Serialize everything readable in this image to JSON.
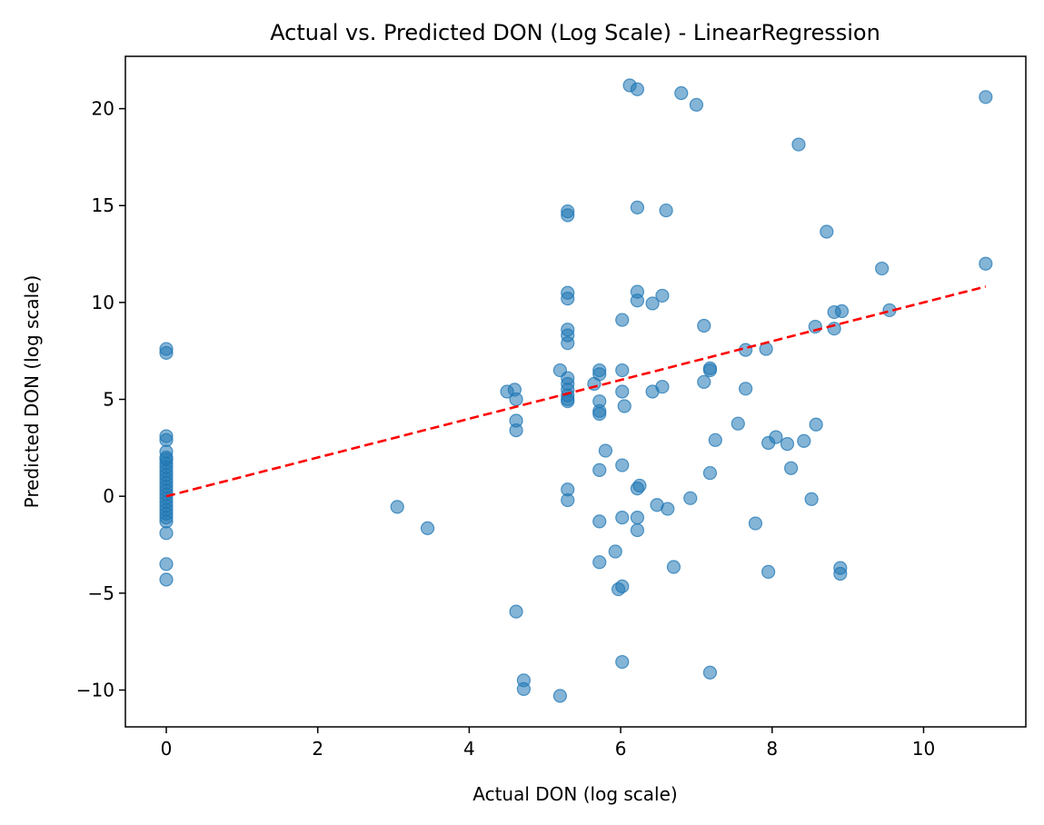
{
  "chart_data": {
    "type": "scatter",
    "title": "Actual vs. Predicted DON (Log Scale) - LinearRegression",
    "xlabel": "Actual DON (log scale)",
    "ylabel": "Predicted DON (log scale)",
    "xlim": [
      -0.54,
      11.35
    ],
    "ylim": [
      -11.9,
      22.7
    ],
    "xticks": [
      0,
      2,
      4,
      6,
      8,
      10
    ],
    "yticks": [
      -10,
      -5,
      0,
      5,
      10,
      15,
      20
    ],
    "xtick_labels": [
      "0",
      "2",
      "4",
      "6",
      "8",
      "10"
    ],
    "ytick_labels": [
      "−10",
      "−5",
      "0",
      "5",
      "10",
      "15",
      "20"
    ],
    "grid": false,
    "series": [
      {
        "type": "scatter",
        "color": "#1f77b4",
        "opacity": 0.55,
        "points": [
          [
            0,
            7.6
          ],
          [
            0,
            7.4
          ],
          [
            0,
            3.1
          ],
          [
            0,
            2.9
          ],
          [
            0,
            2.3
          ],
          [
            0,
            2.0
          ],
          [
            0,
            1.9
          ],
          [
            0,
            1.7
          ],
          [
            0,
            1.5
          ],
          [
            0,
            1.3
          ],
          [
            0,
            1.1
          ],
          [
            0,
            0.9
          ],
          [
            0,
            0.7
          ],
          [
            0,
            0.5
          ],
          [
            0,
            0.3
          ],
          [
            0,
            0.1
          ],
          [
            0,
            -0.1
          ],
          [
            0,
            -0.3
          ],
          [
            0,
            -0.5
          ],
          [
            0,
            -0.7
          ],
          [
            0,
            -0.9
          ],
          [
            0,
            -1.1
          ],
          [
            0,
            -1.3
          ],
          [
            0,
            -1.9
          ],
          [
            0,
            -3.5
          ],
          [
            0,
            -4.3
          ],
          [
            3.05,
            -0.55
          ],
          [
            3.45,
            -1.65
          ],
          [
            4.5,
            5.4
          ],
          [
            4.6,
            5.5
          ],
          [
            4.62,
            5.0
          ],
          [
            4.62,
            3.9
          ],
          [
            4.62,
            3.4
          ],
          [
            4.62,
            -5.95
          ],
          [
            4.72,
            -9.5
          ],
          [
            4.72,
            -9.95
          ],
          [
            5.2,
            -10.3
          ],
          [
            5.2,
            6.5
          ],
          [
            5.3,
            14.7
          ],
          [
            5.3,
            14.5
          ],
          [
            5.3,
            10.5
          ],
          [
            5.3,
            10.2
          ],
          [
            5.3,
            8.6
          ],
          [
            5.3,
            8.3
          ],
          [
            5.3,
            7.9
          ],
          [
            5.3,
            6.1
          ],
          [
            5.3,
            5.8
          ],
          [
            5.3,
            5.5
          ],
          [
            5.3,
            5.2
          ],
          [
            5.3,
            5.0
          ],
          [
            5.3,
            4.9
          ],
          [
            5.3,
            0.35
          ],
          [
            5.3,
            -0.2
          ],
          [
            5.65,
            5.8
          ],
          [
            5.72,
            6.5
          ],
          [
            5.72,
            6.3
          ],
          [
            5.72,
            4.9
          ],
          [
            5.72,
            4.4
          ],
          [
            5.72,
            4.25
          ],
          [
            5.72,
            1.35
          ],
          [
            5.72,
            -1.3
          ],
          [
            5.72,
            -3.4
          ],
          [
            5.8,
            2.35
          ],
          [
            5.93,
            -2.85
          ],
          [
            5.97,
            -4.8
          ],
          [
            6.02,
            6.5
          ],
          [
            6.02,
            5.4
          ],
          [
            6.02,
            9.1
          ],
          [
            6.02,
            1.6
          ],
          [
            6.02,
            -1.1
          ],
          [
            6.02,
            -4.65
          ],
          [
            6.02,
            -8.55
          ],
          [
            6.05,
            4.65
          ],
          [
            6.12,
            21.2
          ],
          [
            6.22,
            21.0
          ],
          [
            6.22,
            14.9
          ],
          [
            6.22,
            10.55
          ],
          [
            6.22,
            10.1
          ],
          [
            6.22,
            0.4
          ],
          [
            6.22,
            -1.1
          ],
          [
            6.22,
            -1.75
          ],
          [
            6.25,
            0.55
          ],
          [
            6.42,
            9.95
          ],
          [
            6.42,
            5.4
          ],
          [
            6.48,
            -0.45
          ],
          [
            6.55,
            10.35
          ],
          [
            6.55,
            5.65
          ],
          [
            6.6,
            14.75
          ],
          [
            6.62,
            -0.65
          ],
          [
            6.7,
            -3.65
          ],
          [
            6.8,
            20.8
          ],
          [
            6.92,
            -0.1
          ],
          [
            7.0,
            20.2
          ],
          [
            7.1,
            8.8
          ],
          [
            7.1,
            5.9
          ],
          [
            7.18,
            6.6
          ],
          [
            7.18,
            6.5
          ],
          [
            7.18,
            1.2
          ],
          [
            7.18,
            -9.1
          ],
          [
            7.25,
            2.9
          ],
          [
            7.55,
            3.75
          ],
          [
            7.65,
            7.55
          ],
          [
            7.65,
            5.55
          ],
          [
            7.78,
            -1.4
          ],
          [
            7.92,
            7.6
          ],
          [
            7.95,
            2.75
          ],
          [
            7.95,
            -3.9
          ],
          [
            8.05,
            3.05
          ],
          [
            8.2,
            2.7
          ],
          [
            8.25,
            1.45
          ],
          [
            8.35,
            18.15
          ],
          [
            8.42,
            2.85
          ],
          [
            8.52,
            -0.15
          ],
          [
            8.57,
            8.75
          ],
          [
            8.58,
            3.7
          ],
          [
            8.72,
            13.65
          ],
          [
            8.82,
            9.5
          ],
          [
            8.82,
            8.65
          ],
          [
            8.9,
            -3.7
          ],
          [
            8.9,
            -4.0
          ],
          [
            8.92,
            9.55
          ],
          [
            9.45,
            11.75
          ],
          [
            9.55,
            9.6
          ],
          [
            10.82,
            20.6
          ],
          [
            10.82,
            12.0
          ]
        ]
      },
      {
        "type": "line",
        "style": "dashed",
        "color": "#ff0000",
        "points": [
          [
            0,
            0
          ],
          [
            10.82,
            10.82
          ]
        ]
      }
    ]
  }
}
